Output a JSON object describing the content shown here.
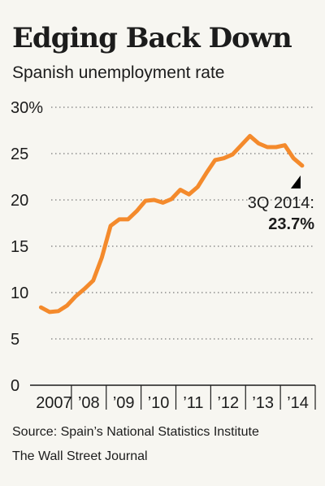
{
  "header": {
    "title": "Edging Back Down",
    "subtitle": "Spanish unemployment rate"
  },
  "footer": {
    "source": "Source: Spain’s National Statistics Institute",
    "credit": "The Wall Street Journal"
  },
  "chart_data": {
    "type": "line",
    "title": "Edging Back Down",
    "subtitle": "Spanish unemployment rate",
    "xlabel": "",
    "ylabel": "",
    "ylim": [
      0,
      30
    ],
    "yticks": [
      0,
      5,
      10,
      15,
      20,
      25,
      30
    ],
    "ytick_labels": [
      "0",
      "5",
      "10",
      "15",
      "20",
      "25",
      "30%"
    ],
    "xlim": [
      2007.0,
      2015.0
    ],
    "xtick_labels": [
      "2007",
      "’08",
      "’09",
      "’10",
      "’11",
      "’12",
      "’13",
      "’14"
    ],
    "grid": true,
    "line_color": "#f48a2c",
    "series": [
      {
        "x": [
          "1Q 2007",
          "2Q 2007",
          "3Q 2007",
          "4Q 2007",
          "1Q 2008",
          "2Q 2008",
          "3Q 2008",
          "4Q 2008",
          "1Q 2009",
          "2Q 2009",
          "3Q 2009",
          "4Q 2009",
          "1Q 2010",
          "2Q 2010",
          "3Q 2010",
          "4Q 2010",
          "1Q 2011",
          "2Q 2011",
          "3Q 2011",
          "4Q 2011",
          "1Q 2012",
          "2Q 2012",
          "3Q 2012",
          "4Q 2012",
          "1Q 2013",
          "2Q 2013",
          "3Q 2013",
          "4Q 2013",
          "1Q 2014",
          "2Q 2014",
          "3Q 2014"
        ],
        "values": [
          8.4,
          7.9,
          8.0,
          8.6,
          9.6,
          10.4,
          11.3,
          13.8,
          17.2,
          17.9,
          17.9,
          18.8,
          19.9,
          20.0,
          19.7,
          20.1,
          21.1,
          20.6,
          21.4,
          22.9,
          24.3,
          24.5,
          24.9,
          25.9,
          26.9,
          26.1,
          25.7,
          25.7,
          25.9,
          24.5,
          23.7
        ]
      }
    ],
    "annotation": {
      "label": "3Q 2014:",
      "value": "23.7%"
    }
  }
}
